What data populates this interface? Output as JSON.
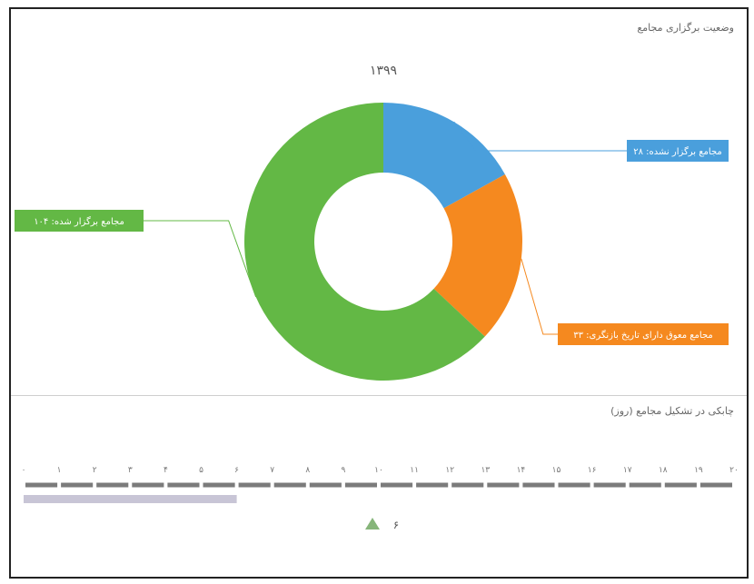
{
  "panel1": {
    "title": "وضعیت برگزاری مجامع"
  },
  "panel2": {
    "title": "چابکی در تشکیل مجامع (روز)"
  },
  "chart_data": [
    {
      "type": "pie",
      "title": "۱۳۹۹",
      "series": [
        {
          "name": "مجامع برگزار نشده",
          "value": 28,
          "label": "مجامع برگزار نشده: ۲۸",
          "color": "#4a9fdc"
        },
        {
          "name": "مجامع معوق دارای تاریخ بازنگری",
          "value": 33,
          "label": "مجامع معوق دارای تاریخ بازنگری: ۳۳",
          "color": "#f5891f"
        },
        {
          "name": "مجامع برگزار شده",
          "value": 104,
          "label": "مجامع برگزار شده: ۱۰۴",
          "color": "#63b845"
        }
      ],
      "donut": true
    },
    {
      "type": "bar",
      "x_ticks": [
        "۰",
        "۱",
        "۲",
        "۳",
        "۴",
        "۵",
        "۶",
        "۷",
        "۸",
        "۹",
        "۱۰",
        "۱۱",
        "۱۲",
        "۱۳",
        "۱۴",
        "۱۵",
        "۱۶",
        "۱۷",
        "۱۸",
        "۱۹",
        "۲۰"
      ],
      "xlim": [
        0,
        20
      ],
      "value": 6,
      "value_label": "۶",
      "marker": "triangle",
      "bar_color": "#c8c5d6",
      "marker_color": "#86b57a"
    }
  ]
}
